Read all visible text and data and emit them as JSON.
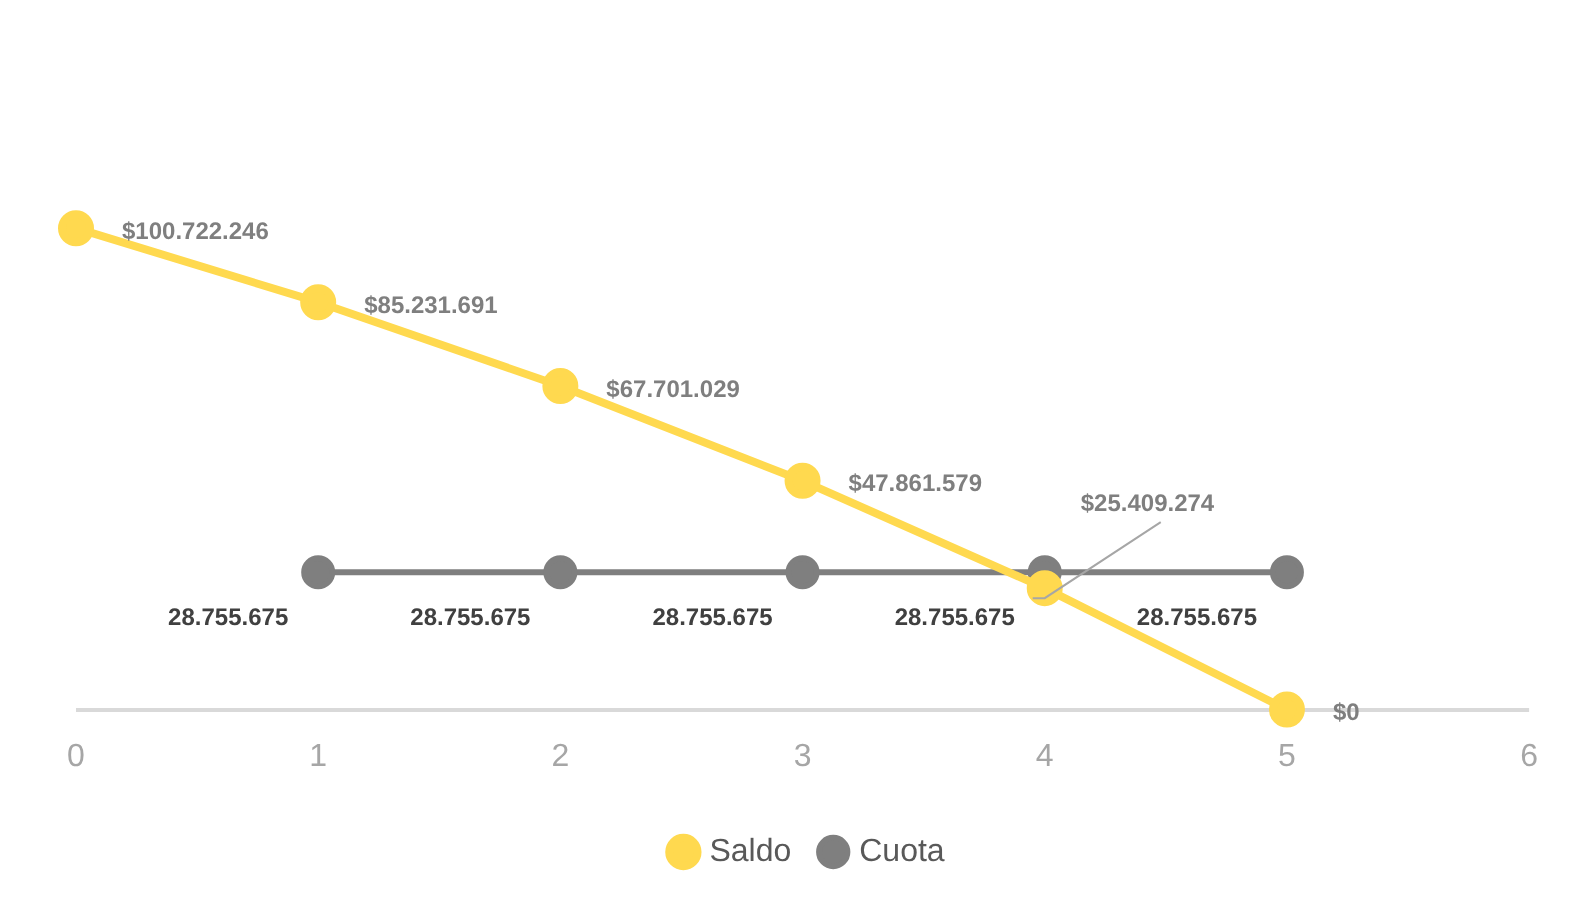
{
  "chart_data": {
    "type": "line",
    "xlim": [
      0,
      6
    ],
    "xticks": [
      0,
      1,
      2,
      3,
      4,
      5,
      6
    ],
    "grid": false,
    "legend": "bottom",
    "marker": "circle",
    "series": [
      {
        "name": "Saldo",
        "color": "#ffd94f",
        "x": [
          0,
          1,
          2,
          3,
          4,
          5
        ],
        "values": [
          100722246,
          85231691,
          67701029,
          47861579,
          25409274,
          0
        ],
        "value_labels": [
          "$100.722.246",
          "$85.231.691",
          "$67.701.029",
          "$47.861.579",
          "$25.409.274",
          "$0"
        ]
      },
      {
        "name": "Cuota",
        "color": "#7f7f7f",
        "x": [
          1,
          2,
          3,
          4,
          5
        ],
        "values": [
          28755675,
          28755675,
          28755675,
          28755675,
          28755675
        ],
        "value_labels": [
          "28.755.675",
          "28.755.675",
          "28.755.675",
          "28.755.675",
          "28.755.675"
        ]
      }
    ]
  }
}
